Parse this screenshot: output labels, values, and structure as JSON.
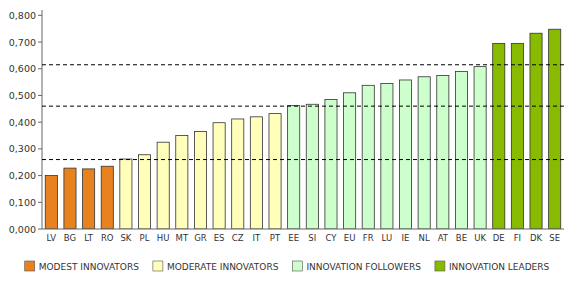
{
  "chart_data": {
    "type": "bar",
    "categories": [
      "LV",
      "BG",
      "LT",
      "RO",
      "SK",
      "PL",
      "HU",
      "MT",
      "GR",
      "ES",
      "CZ",
      "IT",
      "PT",
      "EE",
      "SI",
      "CY",
      "EU",
      "FR",
      "LU",
      "IE",
      "NL",
      "AT",
      "BE",
      "UK",
      "DE",
      "FI",
      "DK",
      "SE"
    ],
    "values": [
      0.2,
      0.228,
      0.225,
      0.235,
      0.262,
      0.278,
      0.325,
      0.35,
      0.365,
      0.398,
      0.412,
      0.42,
      0.432,
      0.462,
      0.467,
      0.485,
      0.51,
      0.538,
      0.545,
      0.558,
      0.57,
      0.575,
      0.59,
      0.608,
      0.695,
      0.695,
      0.733,
      0.748
    ],
    "colors": [
      "#E8821E",
      "#E8821E",
      "#E8821E",
      "#E8821E",
      "#FFFFBB",
      "#FFFFBB",
      "#FFFFBB",
      "#FFFFBB",
      "#FFFFBB",
      "#FFFFBB",
      "#FFFFBB",
      "#FFFFBB",
      "#FFFFBB",
      "#CCFFCC",
      "#CCFFCC",
      "#CCFFCC",
      "#CCFFCC",
      "#CCFFCC",
      "#CCFFCC",
      "#CCFFCC",
      "#CCFFCC",
      "#CCFFCC",
      "#CCFFCC",
      "#CCFFCC",
      "#88BB00",
      "#88BB00",
      "#88BB00",
      "#88BB00"
    ],
    "reference_lines": [
      0.26,
      0.46,
      0.615
    ],
    "reference_line_color": "#000000",
    "ylim": [
      0,
      0.82
    ],
    "yticks": [
      {
        "value": 0.0,
        "label": "0,000"
      },
      {
        "value": 0.1,
        "label": "0,100"
      },
      {
        "value": 0.2,
        "label": "0,200"
      },
      {
        "value": 0.3,
        "label": "0,300"
      },
      {
        "value": 0.4,
        "label": "0,400"
      },
      {
        "value": 0.5,
        "label": "0,500"
      },
      {
        "value": 0.6,
        "label": "0,600"
      },
      {
        "value": 0.7,
        "label": "0,700"
      },
      {
        "value": 0.8,
        "label": "0,800"
      }
    ],
    "legend": "bottom",
    "legend_labels": [
      "MODEST INNOVATORS",
      "MODERATE INNOVATORS",
      "INNOVATION FOLLOWERS",
      "INNOVATION LEADERS"
    ],
    "legend_colors": [
      "#E8821E",
      "#FFFFBB",
      "#CCFFCC",
      "#88BB00"
    ],
    "grid": false
  }
}
